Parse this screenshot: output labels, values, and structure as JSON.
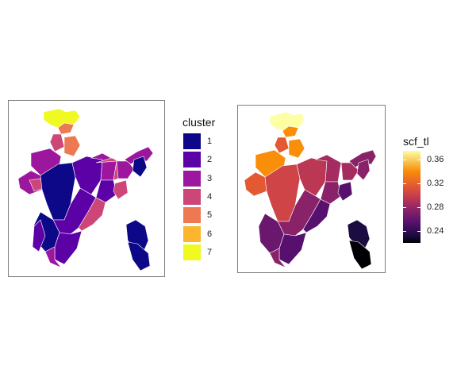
{
  "left_map": {
    "legend_title": "cluster",
    "legend": [
      {
        "label": "1",
        "color": "#0d0887"
      },
      {
        "label": "2",
        "color": "#5c01a6"
      },
      {
        "label": "3",
        "color": "#9c179e"
      },
      {
        "label": "4",
        "color": "#cc4778"
      },
      {
        "label": "5",
        "color": "#ed7953"
      },
      {
        "label": "6",
        "color": "#fdb42f"
      },
      {
        "label": "7",
        "color": "#f0f921"
      }
    ]
  },
  "right_map": {
    "legend_title": "scf_tl",
    "colorbar_ticks": [
      "0.36",
      "0.32",
      "0.28",
      "0.24"
    ],
    "colorbar_range": [
      0.22,
      0.375
    ]
  }
}
